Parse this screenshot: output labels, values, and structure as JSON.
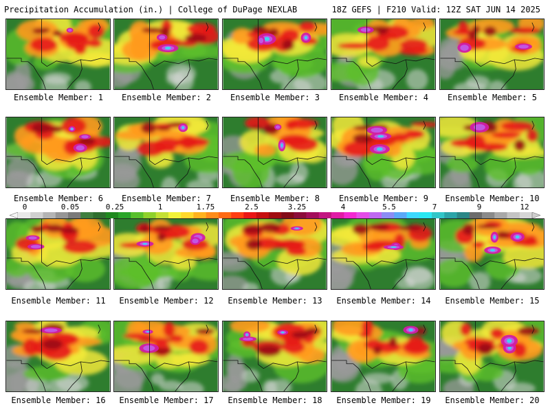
{
  "header": {
    "left_title": "Precipitation Accumulation (in.) | College of DuPage NEXLAB",
    "right_title": "18Z GEFS | F210 Valid: 12Z SAT JUN 14 2025"
  },
  "legend": {
    "labels": [
      "0",
      "0.05",
      "0.25",
      "1",
      "1.75",
      "2.5",
      "3.25",
      "4",
      "5.5",
      "7",
      "9",
      "12"
    ],
    "colors": [
      "#e9e9e9",
      "#d0d0d0",
      "#b4b4b4",
      "#969696",
      "#7a7a7a",
      "#3f7f3f",
      "#2e6f2e",
      "#1f8a1f",
      "#2aa52a",
      "#58c02c",
      "#8fd12c",
      "#c4e034",
      "#f2f23a",
      "#ffd92c",
      "#ffb21e",
      "#ff8c1a",
      "#ff6a14",
      "#ff3d12",
      "#ea1616",
      "#c60f0f",
      "#a00c10",
      "#820a18",
      "#8c0b3a",
      "#a30d5a",
      "#c21581",
      "#e11ba6",
      "#f328d2",
      "#e44de8",
      "#bf69f0",
      "#8c8cf5",
      "#5aa8f8",
      "#3cd8ff",
      "#29e8f2",
      "#31c6c8",
      "#2ba4a8",
      "#2b8787",
      "#6c6c6c",
      "#8a8a8a",
      "#a8a8a8",
      "#c4c4c4",
      "#d6d6d6"
    ]
  },
  "members": [
    {
      "caption": "Ensemble Member: 1"
    },
    {
      "caption": "Ensemble Member: 2"
    },
    {
      "caption": "Ensemble Member: 3"
    },
    {
      "caption": "Ensemble Member: 4"
    },
    {
      "caption": "Ensemble Member: 5"
    },
    {
      "caption": "Ensemble Member: 6"
    },
    {
      "caption": "Ensemble Member: 7"
    },
    {
      "caption": "Ensemble Member: 8"
    },
    {
      "caption": "Ensemble Member: 9"
    },
    {
      "caption": "Ensemble Member: 10"
    },
    {
      "caption": "Ensemble Member: 11"
    },
    {
      "caption": "Ensemble Member: 12"
    },
    {
      "caption": "Ensemble Member: 13"
    },
    {
      "caption": "Ensemble Member: 14"
    },
    {
      "caption": "Ensemble Member: 15"
    },
    {
      "caption": "Ensemble Member: 16"
    },
    {
      "caption": "Ensemble Member: 17"
    },
    {
      "caption": "Ensemble Member: 18"
    },
    {
      "caption": "Ensemble Member: 19"
    },
    {
      "caption": "Ensemble Member: 20"
    }
  ],
  "map_palette": {
    "background_green": "#2e7d2e",
    "light_green": "#5cbf2a",
    "yellow": "#f2e83a",
    "orange": "#ff9a1e",
    "red": "#e51919",
    "dark_red": "#9a0c16",
    "magenta": "#d11ca6",
    "violet": "#c05ae6",
    "cyan": "#3ed8f2",
    "gray": "#9a9a9a",
    "light_gray": "#d8d8d8",
    "border": "#111111"
  }
}
